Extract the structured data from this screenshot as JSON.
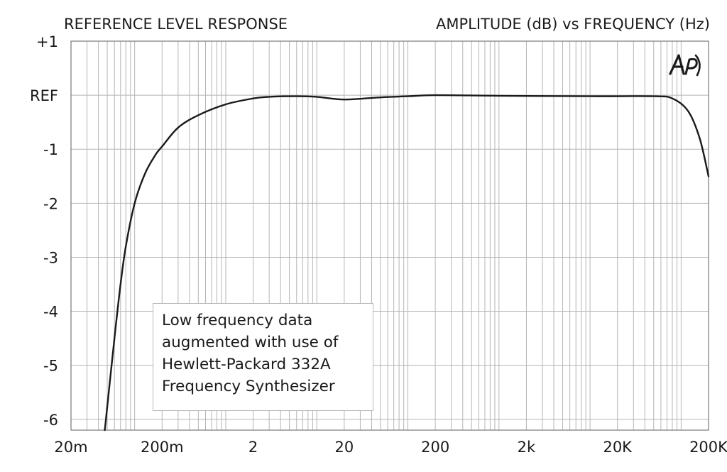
{
  "chart_data": {
    "type": "line",
    "title": "REFERENCE LEVEL RESPONSE",
    "subtitle": "AMPLITUDE (dB) vs FREQUENCY (Hz)",
    "xscale": "log",
    "xlim": [
      0.02,
      200000
    ],
    "ylim": [
      -6.2,
      1
    ],
    "x_ticks": [
      {
        "value": 0.02,
        "label": "20m"
      },
      {
        "value": 0.2,
        "label": "200m"
      },
      {
        "value": 2,
        "label": "2"
      },
      {
        "value": 20,
        "label": "20"
      },
      {
        "value": 200,
        "label": "200"
      },
      {
        "value": 2000,
        "label": "2k"
      },
      {
        "value": 20000,
        "label": "20K"
      },
      {
        "value": 200000,
        "label": "200K"
      }
    ],
    "y_ticks": [
      {
        "value": 1,
        "label": "+1"
      },
      {
        "value": 0,
        "label": "REF"
      },
      {
        "value": -1,
        "label": "-1"
      },
      {
        "value": -2,
        "label": "-2"
      },
      {
        "value": -3,
        "label": "-3"
      },
      {
        "value": -4,
        "label": "-4"
      },
      {
        "value": -5,
        "label": "-5"
      },
      {
        "value": -6,
        "label": "-6"
      }
    ],
    "grid": true,
    "series": [
      {
        "color": "#1a1a1a",
        "points": [
          [
            0.047,
            -6.2
          ],
          [
            0.06,
            -4.5
          ],
          [
            0.07,
            -3.5
          ],
          [
            0.08,
            -2.8
          ],
          [
            0.1,
            -2.0
          ],
          [
            0.13,
            -1.45
          ],
          [
            0.17,
            -1.1
          ],
          [
            0.2,
            -0.95
          ],
          [
            0.3,
            -0.6
          ],
          [
            0.5,
            -0.37
          ],
          [
            1.0,
            -0.17
          ],
          [
            2.0,
            -0.06
          ],
          [
            3.0,
            -0.03
          ],
          [
            6.0,
            -0.02
          ],
          [
            10.0,
            -0.03
          ],
          [
            20.0,
            -0.08
          ],
          [
            50.0,
            -0.04
          ],
          [
            100.0,
            -0.02
          ],
          [
            200.0,
            0.0
          ],
          [
            1000.0,
            -0.01
          ],
          [
            10000.0,
            -0.02
          ],
          [
            50000.0,
            -0.02
          ],
          [
            80000.0,
            -0.06
          ],
          [
            120000.0,
            -0.3
          ],
          [
            160000.0,
            -0.8
          ],
          [
            200000.0,
            -1.5
          ]
        ]
      }
    ]
  },
  "annotation": {
    "lines": [
      "Low frequency data",
      "augmented with use of",
      "Hewlett-Packard 332A",
      "Frequency Synthesizer"
    ]
  },
  "logo": {
    "text": "AP"
  },
  "colors": {
    "grid": "#b5b5b5",
    "frame": "#777777",
    "line": "#1a1a1a",
    "text": "#1a1a1a"
  }
}
